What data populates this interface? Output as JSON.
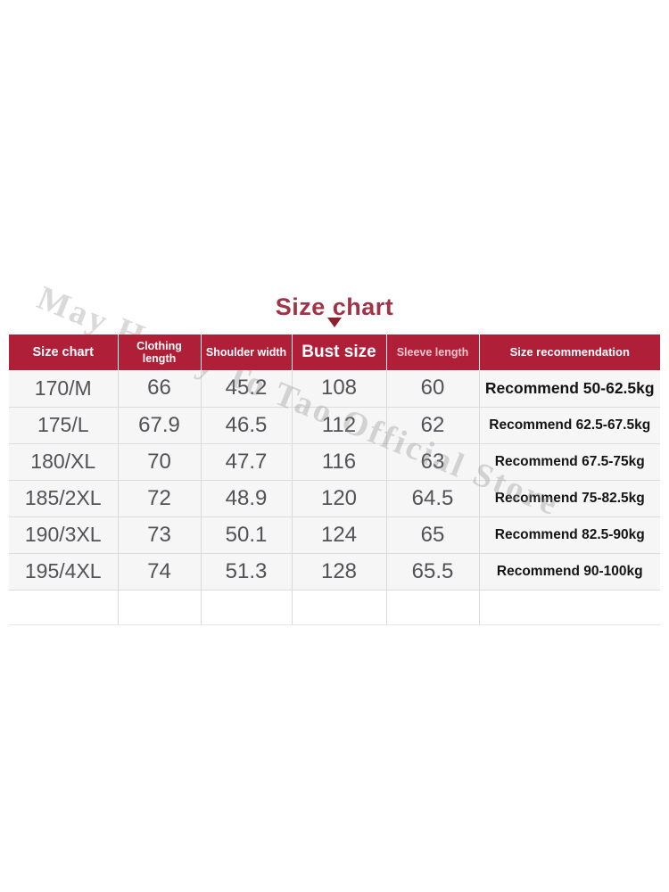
{
  "page": {
    "title": "Size chart"
  },
  "watermark": {
    "text": "May Honey To Tao Official Store"
  },
  "colors": {
    "title": "#a13247",
    "arrow": "#8e1f2f",
    "header_bg": "#b01f38",
    "header_text": "#ffffff",
    "sleeve_header_text": "#f1c6ce",
    "body_text": "#525257",
    "recommendation_text": "#141414",
    "row_bg": "#f6f6f7"
  },
  "table": {
    "header": {
      "size": "Size chart",
      "clothing_length": "Clothing length",
      "shoulder_width": "Shoulder width",
      "bust": "Bust size",
      "sleeve": "Sleeve length",
      "recommendation": "Size recommendation"
    },
    "rows": [
      {
        "size": "170/M",
        "clothing_length": "66",
        "shoulder_width": "45.2",
        "bust": "108",
        "sleeve": "60",
        "recommendation": "Recommend 50-62.5kg"
      },
      {
        "size": "175/L",
        "clothing_length": "67.9",
        "shoulder_width": "46.5",
        "bust": "112",
        "sleeve": "62",
        "recommendation": "Recommend 62.5-67.5kg"
      },
      {
        "size": "180/XL",
        "clothing_length": "70",
        "shoulder_width": "47.7",
        "bust": "116",
        "sleeve": "63",
        "recommendation": "Recommend 67.5-75kg"
      },
      {
        "size": "185/2XL",
        "clothing_length": "72",
        "shoulder_width": "48.9",
        "bust": "120",
        "sleeve": "64.5",
        "recommendation": "Recommend 75-82.5kg"
      },
      {
        "size": "190/3XL",
        "clothing_length": "73",
        "shoulder_width": "50.1",
        "bust": "124",
        "sleeve": "65",
        "recommendation": "Recommend 82.5-90kg"
      },
      {
        "size": "195/4XL",
        "clothing_length": "74",
        "shoulder_width": "51.3",
        "bust": "128",
        "sleeve": "65.5",
        "recommendation": "Recommend 90-100kg"
      }
    ]
  },
  "chart_data": {
    "type": "table",
    "title": "Size chart",
    "columns": [
      "Size chart",
      "Clothing length",
      "Shoulder width",
      "Bust size",
      "Sleeve length",
      "Size recommendation"
    ],
    "rows": [
      [
        "170/M",
        "66",
        "45.2",
        "108",
        "60",
        "Recommend 50-62.5kg"
      ],
      [
        "175/L",
        "67.9",
        "46.5",
        "112",
        "62",
        "Recommend 62.5-67.5kg"
      ],
      [
        "180/XL",
        "70",
        "47.7",
        "116",
        "63",
        "Recommend 67.5-75kg"
      ],
      [
        "185/2XL",
        "72",
        "48.9",
        "120",
        "64.5",
        "Recommend 75-82.5kg"
      ],
      [
        "190/3XL",
        "73",
        "50.1",
        "124",
        "65",
        "Recommend 82.5-90kg"
      ],
      [
        "195/4XL",
        "74",
        "51.3",
        "128",
        "65.5",
        "Recommend 90-100kg"
      ]
    ]
  }
}
